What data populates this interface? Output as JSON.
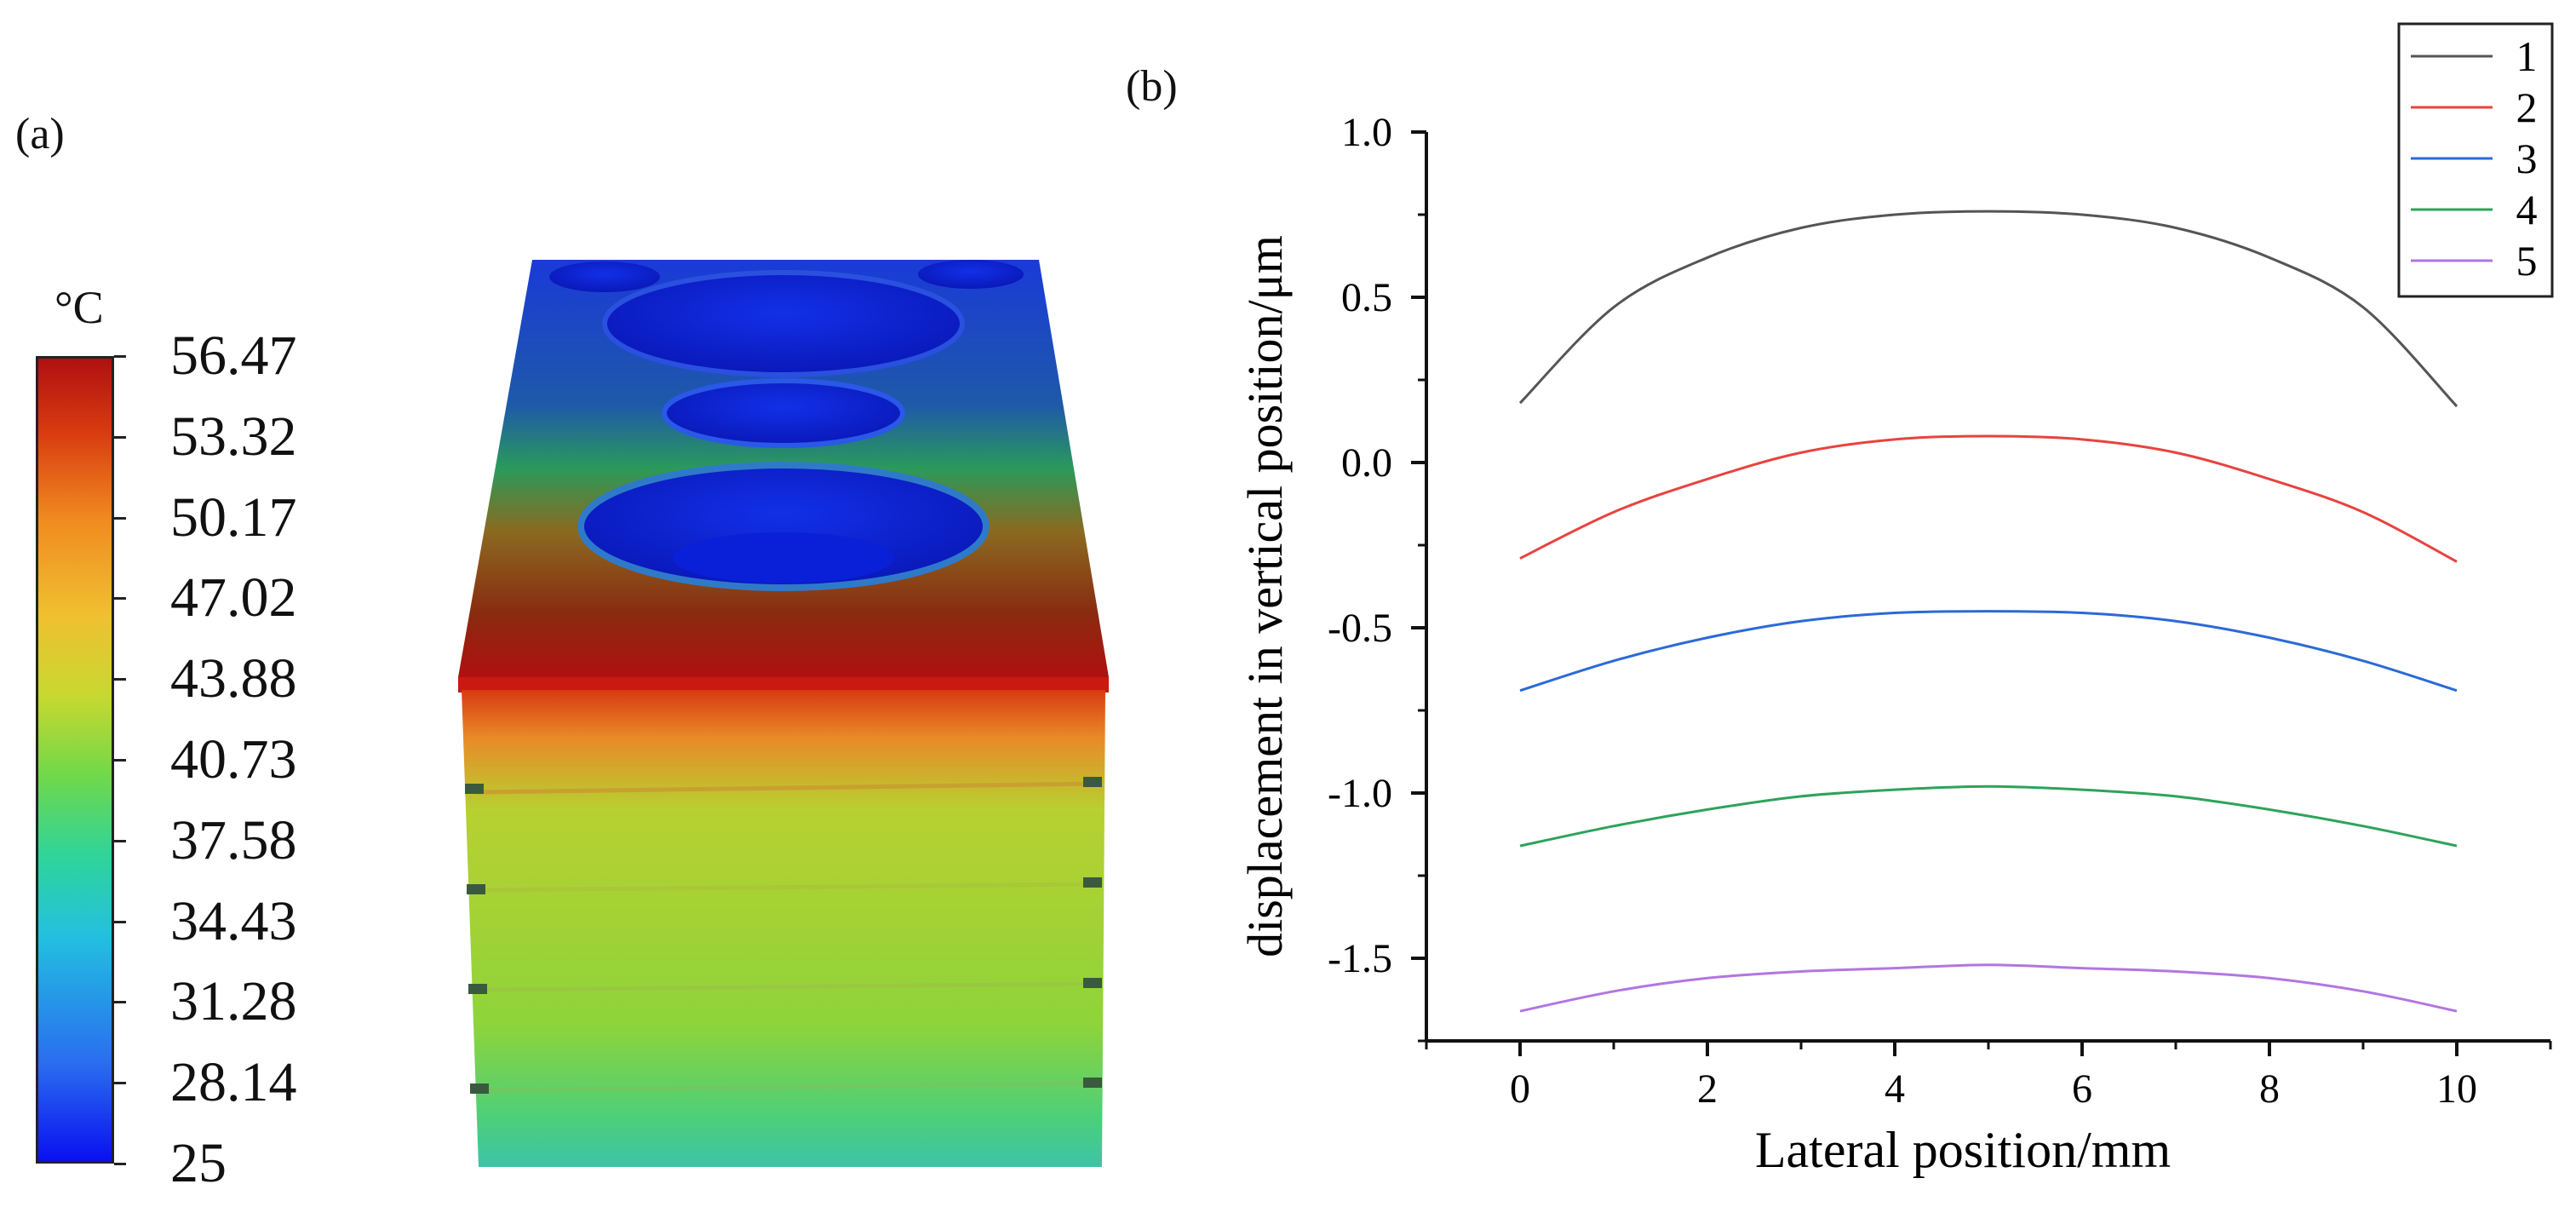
{
  "panel_a": {
    "label": "(a)",
    "colorbar": {
      "unit": "°C",
      "ticks": [
        "56.47",
        "53.32",
        "50.17",
        "47.02",
        "43.88",
        "40.73",
        "37.58",
        "34.43",
        "31.28",
        "28.14",
        "25"
      ],
      "min": 25,
      "max": 56.47,
      "colors": {
        "low": "#0a10f0",
        "mid": "#70d84a",
        "high": "#b01010"
      }
    }
  },
  "panel_b": {
    "label": "(b)"
  },
  "chart_data": {
    "type": "line",
    "title": "",
    "xlabel": "Lateral position/mm",
    "ylabel": "displacement in vertical position/μm",
    "xlim": [
      -1,
      11
    ],
    "ylim": [
      -1.75,
      1.0
    ],
    "xticks": [
      "0",
      "2",
      "4",
      "6",
      "8",
      "10"
    ],
    "yticks": [
      "1.0",
      "0.5",
      "0.0",
      "-0.5",
      "-1.0",
      "-1.5"
    ],
    "legend_position": "top-right",
    "x": [
      0,
      1,
      2,
      3,
      4,
      5,
      6,
      7,
      8,
      9,
      10
    ],
    "series": [
      {
        "name": "1",
        "color": "#555555",
        "values": [
          0.18,
          0.47,
          0.62,
          0.71,
          0.75,
          0.76,
          0.75,
          0.71,
          0.62,
          0.47,
          0.17
        ]
      },
      {
        "name": "2",
        "color": "#e8433f",
        "values": [
          -0.29,
          -0.15,
          -0.05,
          0.03,
          0.07,
          0.08,
          0.07,
          0.03,
          -0.05,
          -0.15,
          -0.3
        ]
      },
      {
        "name": "3",
        "color": "#2b6ad8",
        "values": [
          -0.69,
          -0.6,
          -0.53,
          -0.48,
          -0.455,
          -0.45,
          -0.455,
          -0.48,
          -0.53,
          -0.6,
          -0.69
        ]
      },
      {
        "name": "4",
        "color": "#2ea35a",
        "values": [
          -1.16,
          -1.1,
          -1.05,
          -1.01,
          -0.99,
          -0.98,
          -0.99,
          -1.01,
          -1.05,
          -1.1,
          -1.16
        ]
      },
      {
        "name": "5",
        "color": "#b276e0",
        "values": [
          -1.66,
          -1.6,
          -1.56,
          -1.54,
          -1.53,
          -1.52,
          -1.53,
          -1.54,
          -1.56,
          -1.6,
          -1.66
        ]
      }
    ]
  }
}
